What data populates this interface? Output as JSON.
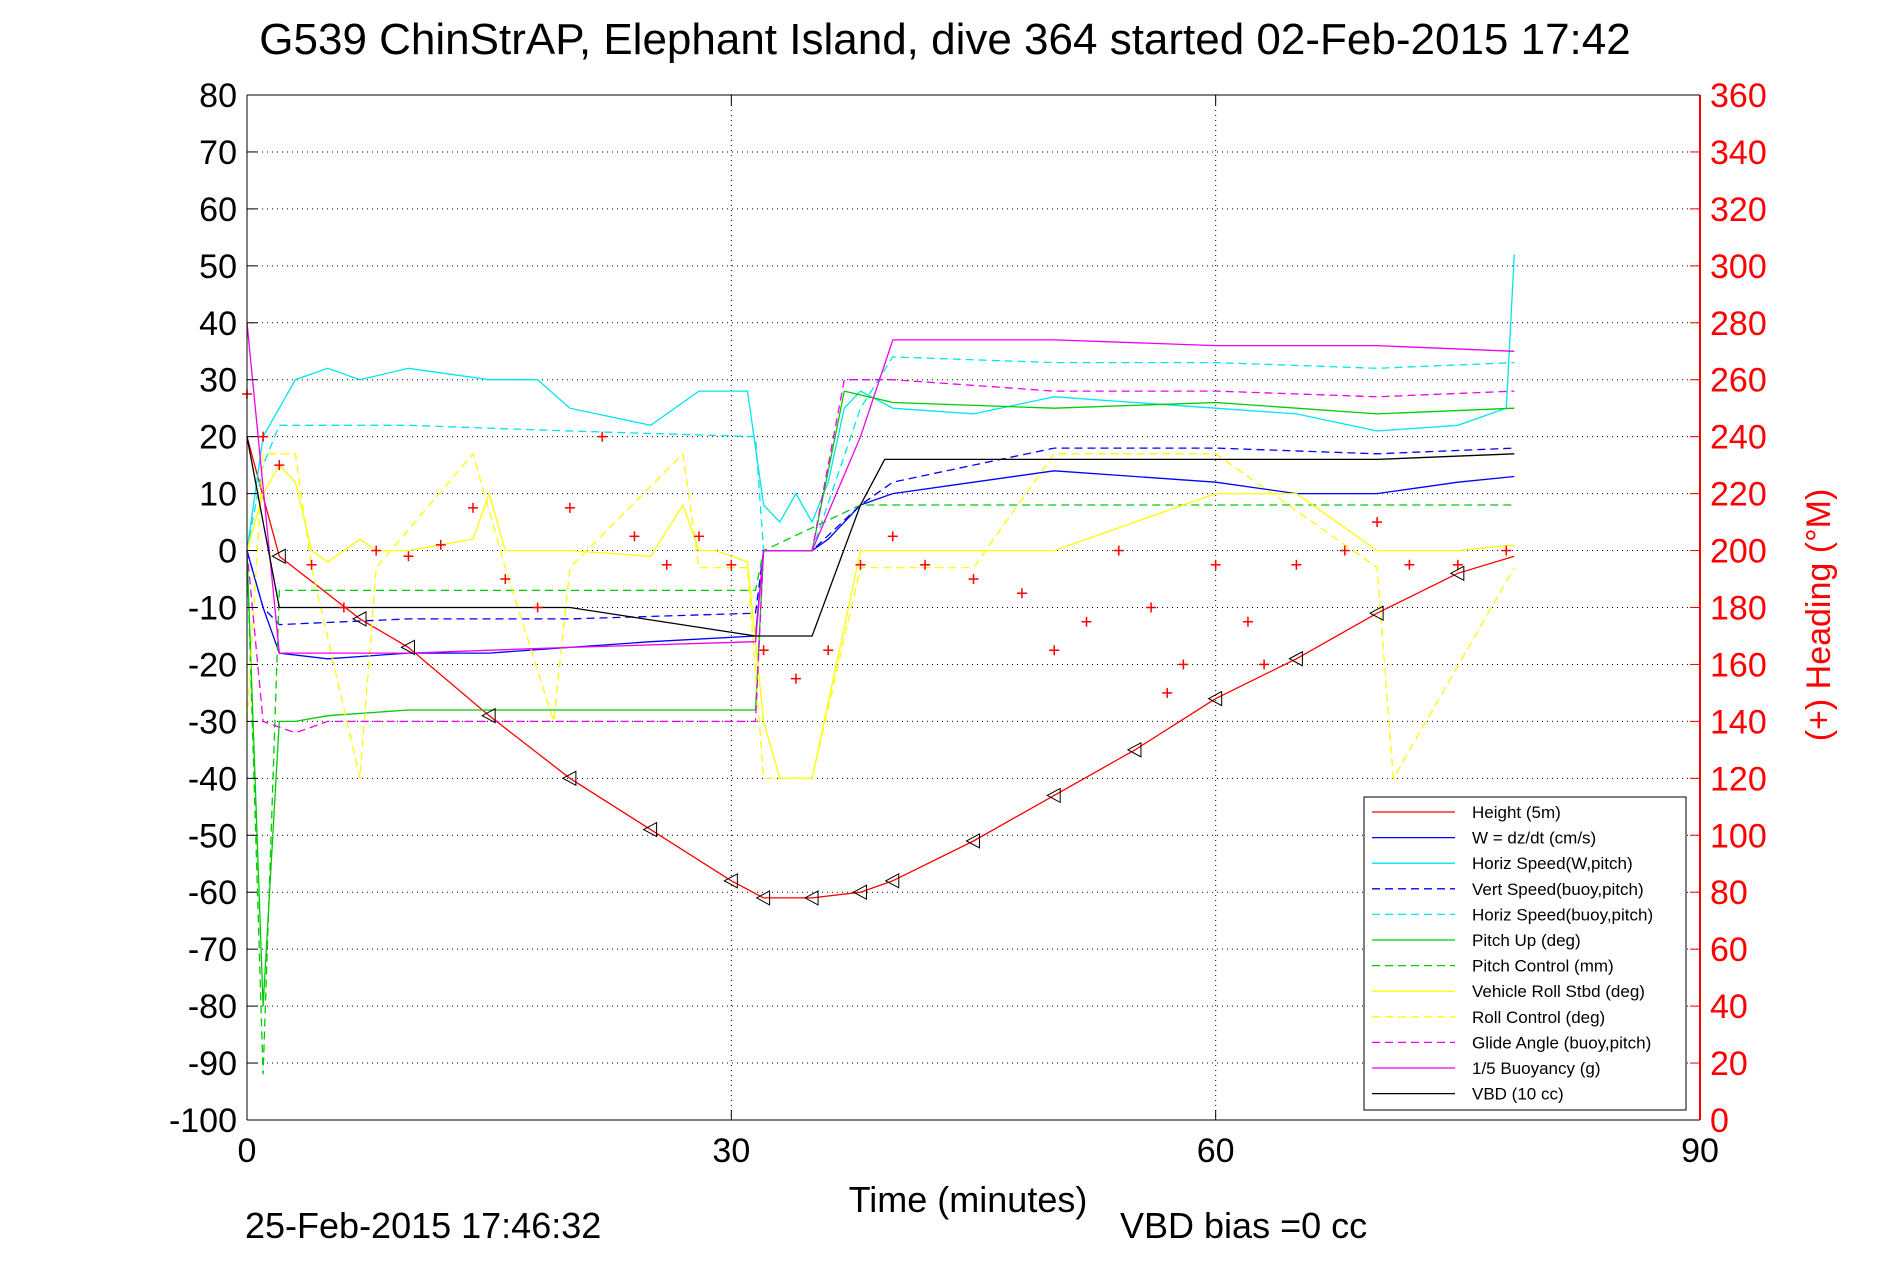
{
  "chart_data": {
    "type": "line",
    "title": "G539 ChinStrAP, Elephant Island, dive 364 started 02-Feb-2015 17:42",
    "xlabel": "Time (minutes)",
    "ylabel_right": "(+) Heading (°M)",
    "footer_date": "25-Feb-2015 17:46:32",
    "footer_note": "VBD bias =0 cc",
    "xlim": [
      0,
      90
    ],
    "ylim_left": [
      -100,
      80
    ],
    "ylim_right": [
      0,
      360
    ],
    "xticks": [
      "0",
      "30",
      "60",
      "90"
    ],
    "yticks_left": [
      "80",
      "70",
      "60",
      "50",
      "40",
      "30",
      "20",
      "10",
      "0",
      "-10",
      "-20",
      "-30",
      "-40",
      "-50",
      "-60",
      "-70",
      "-80",
      "-90",
      "-100"
    ],
    "yticks_right": [
      "360",
      "340",
      "320",
      "300",
      "280",
      "260",
      "240",
      "220",
      "200",
      "180",
      "160",
      "140",
      "120",
      "100",
      "80",
      "60",
      "40",
      "20",
      "0"
    ],
    "grid": true,
    "legend_position": "bottom-right",
    "series": [
      {
        "name": "Height (5m)",
        "color": "#ff0000",
        "style": "solid",
        "x": [
          0,
          2,
          7,
          10,
          15,
          20,
          25,
          30,
          32,
          35,
          38,
          40,
          45,
          50,
          55,
          60,
          65,
          70,
          75,
          78.5
        ],
        "y": [
          20,
          -1,
          -12,
          -17,
          -29,
          -40,
          -49,
          -58,
          -61,
          -61,
          -60,
          -58,
          -51,
          -43,
          -35,
          -26,
          -19,
          -11,
          -4,
          -1
        ]
      },
      {
        "name": "W = dz/dt (cm/s)",
        "color": "#0000ff",
        "style": "solid",
        "x": [
          0,
          1,
          2,
          5,
          10,
          15,
          20,
          25,
          31.5,
          32,
          35,
          36,
          38,
          40,
          45,
          50,
          55,
          60,
          65,
          70,
          75,
          78.5
        ],
        "y": [
          0,
          -10,
          -18,
          -19,
          -18,
          -18,
          -17,
          -16,
          -15,
          0,
          0,
          2,
          8,
          10,
          12,
          14,
          13,
          12,
          10,
          10,
          12,
          13
        ]
      },
      {
        "name": "Horiz Speed(W,pitch)",
        "color": "#00e5ee",
        "style": "solid",
        "x": [
          0,
          1,
          3,
          5,
          7,
          10,
          15,
          18,
          20,
          25,
          28,
          31,
          32,
          33,
          34,
          35,
          36,
          37,
          38,
          40,
          45,
          50,
          55,
          60,
          65,
          70,
          75,
          78,
          78.5
        ],
        "y": [
          0,
          20,
          30,
          32,
          30,
          32,
          30,
          30,
          25,
          22,
          28,
          28,
          8,
          5,
          10,
          5,
          12,
          25,
          28,
          25,
          24,
          27,
          26,
          25,
          24,
          21,
          22,
          25,
          52
        ]
      },
      {
        "name": "Vert Speed(buoy,pitch)",
        "color": "#0000ff",
        "style": "dashed",
        "x": [
          0,
          1,
          2,
          10,
          20,
          31.5,
          32,
          35,
          38,
          40,
          45,
          50,
          55,
          60,
          70,
          78.5
        ],
        "y": [
          0,
          -10,
          -13,
          -12,
          -12,
          -11,
          0,
          0,
          8,
          12,
          15,
          18,
          18,
          18,
          17,
          18
        ]
      },
      {
        "name": "Horiz Speed(buoy,pitch)",
        "color": "#00e5ee",
        "style": "dashed",
        "x": [
          0,
          1,
          2,
          10,
          20,
          31.5,
          32,
          35,
          38,
          40,
          50,
          60,
          70,
          78.5
        ],
        "y": [
          0,
          15,
          22,
          22,
          21,
          20,
          0,
          0,
          25,
          34,
          33,
          33,
          32,
          33
        ]
      },
      {
        "name": "Pitch Up (deg)",
        "color": "#00cc00",
        "style": "solid",
        "x": [
          0,
          1,
          2,
          3,
          5,
          10,
          20,
          31.5,
          32,
          35,
          37,
          40,
          50,
          60,
          70,
          78.5
        ],
        "y": [
          0,
          -80,
          -30,
          -30,
          -29,
          -28,
          -28,
          -28,
          0,
          0,
          28,
          26,
          25,
          26,
          24,
          25
        ]
      },
      {
        "name": "Pitch Control (mm)",
        "color": "#00cc00",
        "style": "dashed",
        "x": [
          0,
          1,
          2,
          10,
          20,
          31.5,
          32,
          38,
          40,
          50,
          60,
          70,
          78.5
        ],
        "y": [
          0,
          -92,
          -7,
          -7,
          -7,
          -7,
          0,
          8,
          8,
          8,
          8,
          8,
          8
        ]
      },
      {
        "name": "Vehicle Roll Stbd (deg)",
        "color": "#ffff00",
        "style": "solid",
        "x": [
          0,
          1,
          2,
          3,
          4,
          5,
          6,
          7,
          8,
          10,
          14,
          15,
          16,
          17,
          20,
          25,
          27,
          28,
          29,
          31,
          32,
          33,
          35,
          38,
          40,
          45,
          50,
          55,
          60,
          65,
          70,
          75,
          78.5
        ],
        "y": [
          0,
          10,
          15,
          12,
          0,
          -2,
          0,
          2,
          0,
          0,
          2,
          10,
          0,
          0,
          0,
          -1,
          8,
          0,
          0,
          -2,
          -30,
          -40,
          -40,
          0,
          0,
          0,
          0,
          5,
          10,
          10,
          0,
          0,
          1
        ]
      },
      {
        "name": "Roll Control (deg)",
        "color": "#ffff00",
        "style": "dashed",
        "x": [
          0,
          1,
          3,
          4,
          7,
          8,
          14,
          16,
          19,
          20,
          27,
          28,
          31,
          32,
          35,
          38,
          39,
          45,
          50,
          60,
          70,
          71,
          78.5
        ],
        "y": [
          -30,
          17,
          17,
          -3,
          -40,
          -3,
          17,
          -3,
          -30,
          -3,
          17,
          -3,
          -3,
          -40,
          -40,
          -3,
          -3,
          -3,
          17,
          17,
          -3,
          -40,
          -3
        ]
      },
      {
        "name": "Glide Angle (buoy,pitch)",
        "color": "#ee00ee",
        "style": "dashed",
        "x": [
          0,
          1,
          3,
          5,
          10,
          20,
          31.5,
          32,
          35,
          37,
          40,
          50,
          60,
          70,
          78.5
        ],
        "y": [
          0,
          -30,
          -32,
          -30,
          -30,
          -30,
          -30,
          0,
          0,
          30,
          30,
          28,
          28,
          27,
          28
        ]
      },
      {
        "name": "1/5 Buoyancy (g)",
        "color": "#ee00ee",
        "style": "solid",
        "x": [
          0,
          2,
          10,
          20,
          31.5,
          32,
          35,
          38,
          40,
          50,
          60,
          70,
          78.5
        ],
        "y": [
          40,
          -18,
          -18,
          -17,
          -16,
          0,
          0,
          20,
          37,
          37,
          36,
          36,
          35
        ]
      },
      {
        "name": "VBD (10 cc)",
        "color": "#000000",
        "style": "solid",
        "x": [
          0,
          1,
          2,
          10,
          20,
          31.5,
          35,
          38,
          39.5,
          50,
          60,
          70,
          78.5
        ],
        "y": [
          20,
          5,
          -10,
          -10,
          -10,
          -15,
          -15,
          8,
          16,
          16,
          16,
          16,
          17
        ]
      },
      {
        "name": "(+) Heading",
        "color": "#ff0000",
        "style": "plus",
        "axis": "right",
        "x": [
          0,
          1,
          2,
          4,
          6,
          8,
          10,
          12,
          14,
          16,
          18,
          20,
          22,
          24,
          26,
          28,
          30,
          32,
          34,
          36,
          38,
          40,
          42,
          45,
          48,
          50,
          52,
          54,
          56,
          57,
          58,
          60,
          62,
          63,
          65,
          68,
          70,
          72,
          75,
          78
        ],
        "y": [
          255,
          240,
          230,
          195,
          180,
          200,
          198,
          202,
          215,
          190,
          180,
          215,
          240,
          205,
          195,
          205,
          195,
          165,
          155,
          165,
          195,
          205,
          195,
          190,
          185,
          165,
          175,
          200,
          180,
          150,
          160,
          195,
          175,
          160,
          195,
          200,
          210,
          195,
          195,
          200
        ]
      }
    ]
  }
}
